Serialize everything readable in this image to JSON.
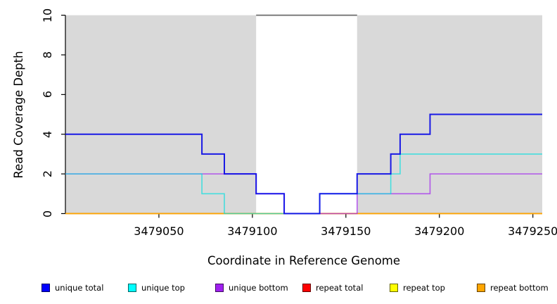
{
  "chart_data": {
    "type": "line",
    "subtype": "step-coverage",
    "title": "",
    "xlabel": "Coordinate in Reference Genome",
    "ylabel": "Read Coverage Depth",
    "xlim": [
      3479000,
      3479255
    ],
    "ylim": [
      0,
      10
    ],
    "x_ticks": [
      3479050,
      3479100,
      3479150,
      3479200,
      3479250
    ],
    "x_tick_labels": [
      "3479050",
      "3479100",
      "3479150",
      "3479200",
      "3479250"
    ],
    "y_ticks": [
      0,
      2,
      4,
      6,
      8,
      10
    ],
    "y_tick_labels": [
      "0",
      "2",
      "4",
      "6",
      "8",
      "10"
    ],
    "grid": false,
    "shaded_regions": [
      {
        "x0": 3479000,
        "x1": 3479102
      },
      {
        "x0": 3479156,
        "x1": 3479255
      }
    ],
    "masked_region": {
      "x0": 3479102,
      "x1": 3479156,
      "top_value": 10
    },
    "series": [
      {
        "name": "repeat total",
        "color": "#DD0000",
        "width": 1.3,
        "opacity": 0.9,
        "steps": [
          [
            3479000,
            0
          ]
        ]
      },
      {
        "name": "repeat top",
        "color": "#FFFF00",
        "width": 1.3,
        "opacity": 0.9,
        "steps": [
          [
            3479000,
            0
          ]
        ]
      },
      {
        "name": "repeat bottom",
        "color": "#FFA500",
        "width": 1.7,
        "opacity": 1,
        "steps": [
          [
            3479000,
            0
          ]
        ]
      },
      {
        "name": "unique bottom",
        "color": "#A020F0",
        "width": 1.6,
        "opacity": 0.7,
        "steps": [
          [
            3479000,
            2
          ],
          [
            3479102,
            1
          ],
          [
            3479117,
            0
          ],
          [
            3479156,
            1
          ],
          [
            3479195,
            2
          ]
        ]
      },
      {
        "name": "unique top",
        "color": "#00E0E0",
        "width": 1.6,
        "opacity": 0.68,
        "steps": [
          [
            3479000,
            2
          ],
          [
            3479073,
            1
          ],
          [
            3479085,
            0
          ],
          [
            3479136,
            1
          ],
          [
            3479174,
            2
          ],
          [
            3479179,
            3
          ]
        ]
      },
      {
        "name": "unique total",
        "color": "#0A0AE6",
        "width": 2.0,
        "opacity": 0.92,
        "steps": [
          [
            3479000,
            4
          ],
          [
            3479073,
            3
          ],
          [
            3479085,
            2
          ],
          [
            3479102,
            1
          ],
          [
            3479117,
            0
          ],
          [
            3479136,
            1
          ],
          [
            3479156,
            2
          ],
          [
            3479174,
            3
          ],
          [
            3479179,
            4
          ],
          [
            3479195,
            5
          ]
        ]
      }
    ],
    "legend": [
      {
        "label": "unique total",
        "color": "#0000FF"
      },
      {
        "label": "unique top",
        "color": "#00FFFF"
      },
      {
        "label": "unique bottom",
        "color": "#A020F0"
      },
      {
        "label": "repeat total",
        "color": "#FF0000"
      },
      {
        "label": "repeat top",
        "color": "#FFFF00"
      },
      {
        "label": "repeat bottom",
        "color": "#FFA500"
      }
    ],
    "legend_position": "bottom",
    "colors": {
      "shaded": "#D9D9D9",
      "mask_border": "#6B6B6B",
      "axis": "#000000",
      "background": "#FFFFFF"
    }
  }
}
